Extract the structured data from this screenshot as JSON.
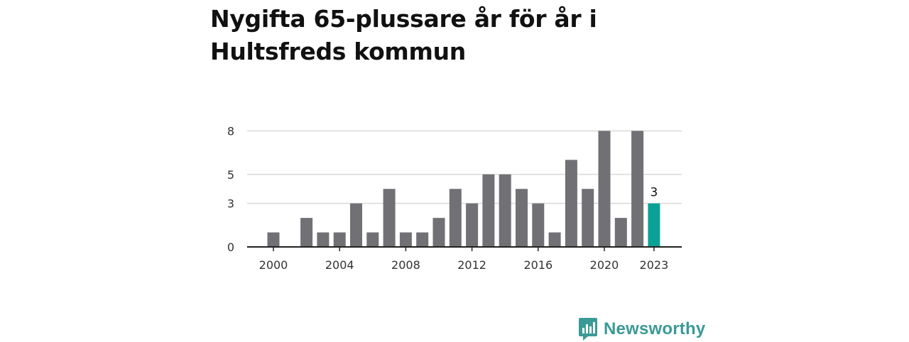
{
  "title": "Nygifta 65-plussare år för år i Hultsfreds kommun",
  "brand": {
    "name": "Newsworthy",
    "icon": "newsworthy-logo-icon"
  },
  "colors": {
    "bar": "#707075",
    "highlight": "#0aa296",
    "grid": "#d9d9d9",
    "axis": "#222222",
    "brand": "#3a9a96"
  },
  "chart_data": {
    "type": "bar",
    "title": "Nygifta 65-plussare år för år i Hultsfreds kommun",
    "xlabel": "",
    "ylabel": "",
    "categories": [
      "2000",
      "2001",
      "2002",
      "2003",
      "2004",
      "2005",
      "2006",
      "2007",
      "2008",
      "2009",
      "2010",
      "2011",
      "2012",
      "2013",
      "2014",
      "2015",
      "2016",
      "2017",
      "2018",
      "2019",
      "2020",
      "2021",
      "2022",
      "2023"
    ],
    "values": [
      1,
      0,
      2,
      1,
      1,
      3,
      1,
      4,
      1,
      1,
      2,
      4,
      3,
      5,
      5,
      4,
      3,
      1,
      6,
      4,
      8,
      2,
      8,
      3
    ],
    "highlight_index": 23,
    "highlight_label": "3",
    "ylim": [
      0,
      9
    ],
    "yticks": [
      0,
      3,
      5,
      8
    ],
    "ytick_labels": [
      "0",
      "3",
      "5",
      "8"
    ],
    "xtick_labels": [
      "2000",
      "2004",
      "2008",
      "2012",
      "2016",
      "2020",
      "2023"
    ],
    "grid": true,
    "legend": "none"
  }
}
